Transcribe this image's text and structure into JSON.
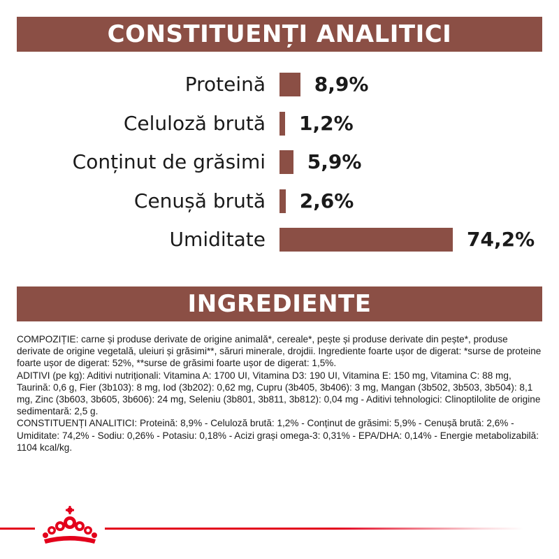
{
  "header": {
    "title": "CONSTITUENȚI ANALITICI"
  },
  "chart_data": {
    "type": "bar",
    "orientation": "horizontal",
    "categories": [
      "Proteină",
      "Celuloză brută",
      "Conținut de grăsimi",
      "Cenușă brută",
      "Umiditate"
    ],
    "values": [
      8.9,
      1.2,
      5.9,
      2.6,
      74.2
    ],
    "value_labels": [
      "8,9%",
      "1,2%",
      "5,9%",
      "2,6%",
      "74,2%"
    ],
    "xlim": [
      0,
      74.2
    ],
    "color": "#8b4f45",
    "grid": false
  },
  "ingredients": {
    "title": "INGREDIENTE",
    "paragraphs": [
      "COMPOZIȚIE: carne și produse derivate de origine animală*, cereale*, pește și produse derivate din pește*, produse derivate de origine vegetală, uleiuri și grăsimi**, săruri minerale, drojdii. Ingrediente foarte ușor de digerat: *surse de proteine foarte ușor de digerat: 52%, **surse de grăsimi foarte ușor de digerat: 1,5%.",
      "ADITIVI (pe kg): Aditivi nutriționali: Vitamina A: 1700 UI, Vitamina D3: 190 UI, Vitamina E: 150 mg, Vitamina C: 88 mg, Taurină: 0,6 g, Fier (3b103): 8 mg, Iod (3b202): 0,62 mg, Cupru (3b405, 3b406): 3 mg, Mangan (3b502, 3b503, 3b504): 8,1 mg, Zinc (3b603, 3b605, 3b606): 24 mg, Seleniu (3b801, 3b811, 3b812): 0,04 mg - Aditivi tehnologici: Clinoptilolite de origine sedimentară: 2,5 g.",
      "CONSTITUENȚI ANALITICI: Proteină: 8,9% - Celuloză brută: 1,2% - Conținut de grăsimi: 5,9% - Cenușă brută: 2,6% - Umiditate: 74,2% - Sodiu: 0,26% - Potasiu: 0,18% - Acizi grași omega-3: 0,31% - EPA/DHA: 0,14% - Energie metabolizabilă: 1104 kcal/kg."
    ]
  },
  "colors": {
    "banner": "#8b4f45",
    "brand_red": "#e3001b"
  },
  "footer": {
    "logo_icon": "crown-icon"
  }
}
